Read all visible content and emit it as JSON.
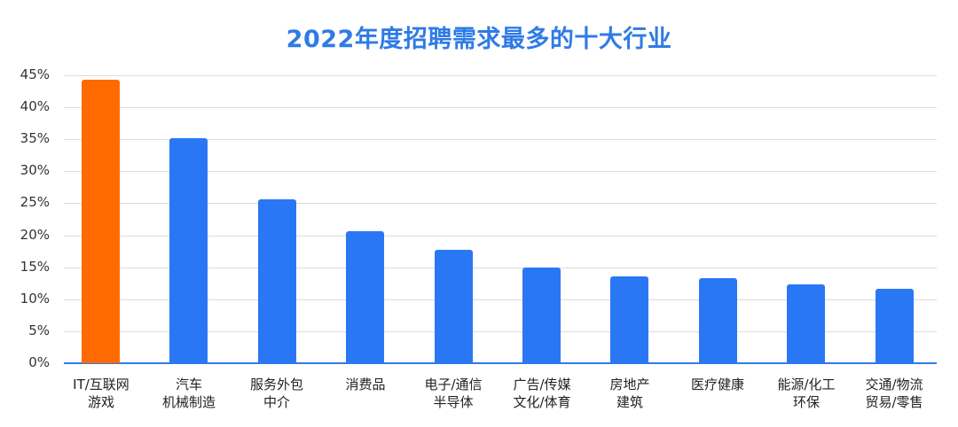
{
  "chart_data": {
    "type": "bar",
    "title": "2022年度招聘需求最多的十大行业",
    "xlabel": "",
    "ylabel": "",
    "ylim": [
      0,
      45
    ],
    "yticks": [
      "0%",
      "5%",
      "10%",
      "15%",
      "20%",
      "25%",
      "30%",
      "35%",
      "40%",
      "45%"
    ],
    "grid": true,
    "categories": [
      [
        "IT/互联网",
        "游戏"
      ],
      [
        "汽车",
        "机械制造"
      ],
      [
        "服务外包",
        "中介"
      ],
      [
        "消费品",
        ""
      ],
      [
        "电子/通信",
        "半导体"
      ],
      [
        "广告/传媒",
        "文化/体育"
      ],
      [
        "房地产",
        "建筑"
      ],
      [
        "医疗健康",
        ""
      ],
      [
        "能源/化工",
        "环保"
      ],
      [
        "交通/物流",
        "贸易/零售"
      ]
    ],
    "values": [
      44.3,
      35.2,
      25.6,
      20.6,
      17.7,
      15.0,
      13.6,
      13.3,
      12.3,
      11.6
    ],
    "colors": {
      "highlight": "#ff6a00",
      "default": "#2a77f6",
      "title": "#2f7be6",
      "axis": "#2f7be6",
      "grid": "#dcdcdc"
    }
  }
}
